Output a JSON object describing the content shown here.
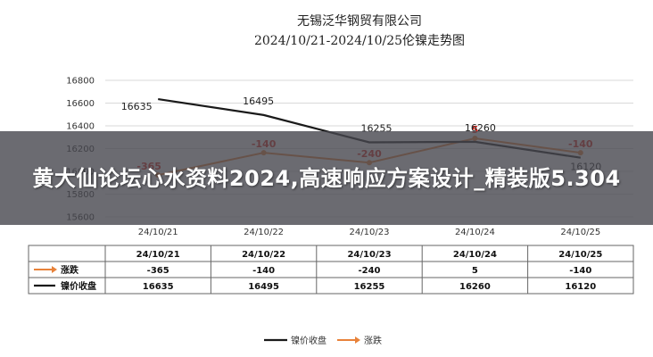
{
  "chart_data": {
    "type": "line",
    "title": "无锡泛华钢贸有限公司",
    "subtitle": "2024/10/21-2024/10/25伦镍走势图",
    "categories": [
      "24/10/21",
      "24/10/22",
      "24/10/23",
      "24/10/24",
      "24/10/25"
    ],
    "ylim": [
      15600,
      16800
    ],
    "yticks": [
      16800,
      16600,
      16400,
      16200,
      16000,
      15800,
      15600
    ],
    "grid": true,
    "legend_placement": "bottom",
    "series": [
      {
        "name": "镍价收盘",
        "values": [
          16635,
          16495,
          16255,
          16260,
          16120
        ],
        "color": "#1a1a1a"
      },
      {
        "name": "涨跌",
        "values": [
          -365,
          -140,
          -240,
          5,
          -140
        ],
        "color": "#e8823a"
      }
    ],
    "change_labels": [
      "-365",
      "-140",
      "-240",
      "5",
      "-140"
    ],
    "close_labels": [
      "16635",
      "16495",
      "16255",
      "16260",
      "16120"
    ],
    "table": {
      "row_change_label": "涨跌",
      "row_close_label": "镍价收盘"
    }
  },
  "overlay": {
    "text": "黄大仙论坛心水资料2024,高速响应方案设计_精装版5.304"
  },
  "colors": {
    "close_line": "#1a1a1a",
    "change_line": "#e8823a",
    "change_label": "#d9261c",
    "grid": "#d9d9d9"
  }
}
